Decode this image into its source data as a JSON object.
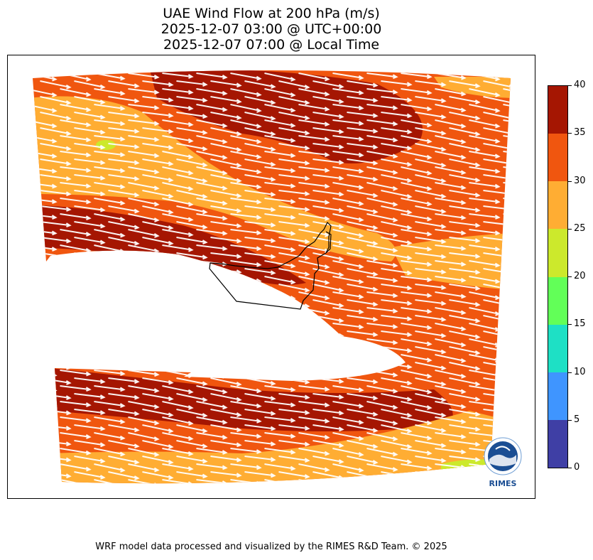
{
  "title": {
    "line1": "UAE Wind Flow at 200 hPa (m/s)",
    "line2": "2025-12-07 03:00 @ UTC+00:00",
    "line3": "2025-12-07 07:00 @ Local Time"
  },
  "colorbar": {
    "min": 0,
    "max": 40,
    "ticks": [
      "0",
      "5",
      "10",
      "15",
      "20",
      "25",
      "30",
      "35",
      "40"
    ],
    "colors": [
      "#3f3fa5",
      "#3f95ff",
      "#1ee0c5",
      "#62ff58",
      "#cce92c",
      "#ffad33",
      "#f0560f",
      "#a51602"
    ]
  },
  "logo": {
    "text": "RIMES",
    "icon": "rimes-logo-icon"
  },
  "footer": "WRF model data processed and visualized by the RIMES R&D Team. © 2025",
  "map": {
    "region": "UAE",
    "level": "200 hPa",
    "wind_direction": "west-northwest to east-southeast",
    "speed_range": [
      25,
      40
    ]
  }
}
